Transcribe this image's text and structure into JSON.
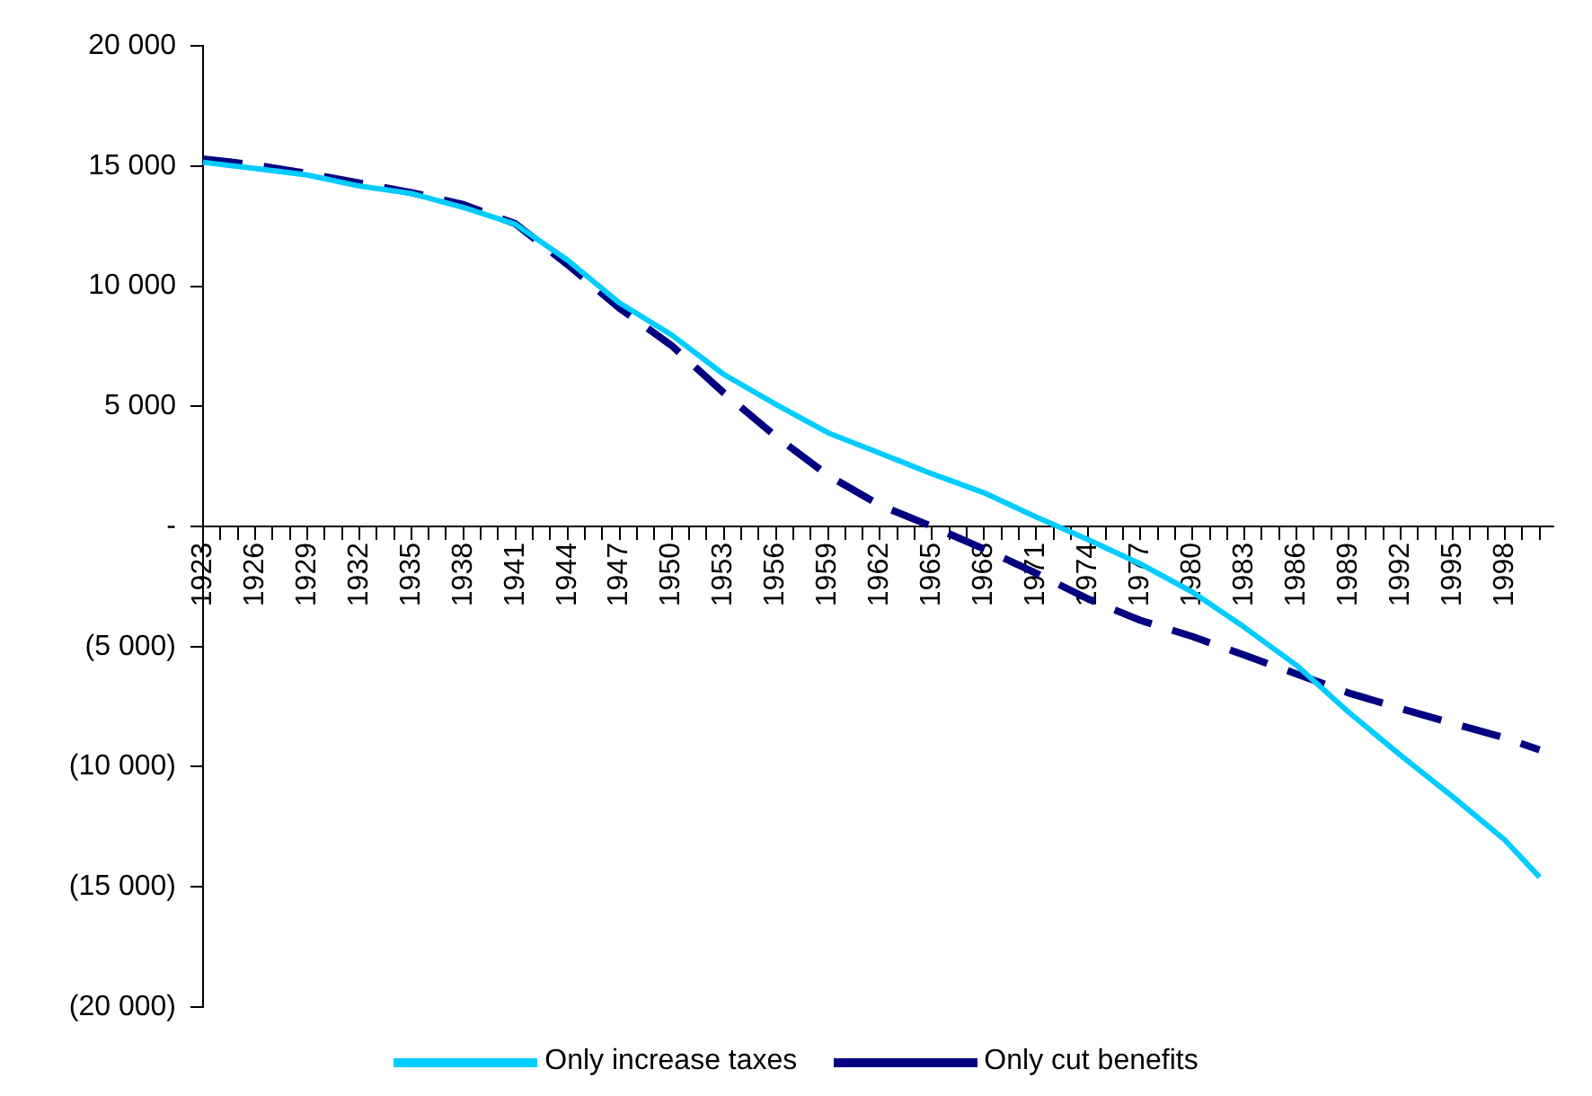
{
  "chart_data": {
    "type": "line",
    "x": [
      1923,
      1926,
      1929,
      1932,
      1935,
      1938,
      1941,
      1944,
      1947,
      1950,
      1953,
      1956,
      1959,
      1962,
      1965,
      1968,
      1971,
      1974,
      1977,
      1980,
      1983,
      1986,
      1989,
      1992,
      1995,
      1998,
      2000
    ],
    "series": [
      {
        "name": "Only increase taxes",
        "color": "#00ccff",
        "line_style": "solid",
        "values": [
          15160,
          14900,
          14630,
          14170,
          13860,
          13280,
          12580,
          11090,
          9300,
          7970,
          6330,
          5080,
          3900,
          3050,
          2190,
          1400,
          390,
          -550,
          -1560,
          -2730,
          -4200,
          -5780,
          -7730,
          -9530,
          -11250,
          -13050,
          -14600
        ]
      },
      {
        "name": "Only cut benefits",
        "color": "#000080",
        "line_style": "dashed",
        "values": [
          15300,
          15050,
          14700,
          14300,
          13900,
          13400,
          12600,
          10900,
          9080,
          7530,
          5560,
          3750,
          2130,
          880,
          0,
          -940,
          -1950,
          -3020,
          -3910,
          -4580,
          -5360,
          -6140,
          -6930,
          -7580,
          -8200,
          -8800,
          -9300
        ]
      }
    ],
    "xlim": [
      1923,
      2000.8
    ],
    "xticks": [
      1923,
      {
        "value": 1924,
        "label": null
      },
      {
        "value": 1925,
        "label": null
      },
      1926,
      {
        "value": 1927,
        "label": null
      },
      {
        "value": 1928,
        "label": null
      },
      1929,
      {
        "value": 1930,
        "label": null
      },
      {
        "value": 1931,
        "label": null
      },
      1932,
      {
        "value": 1933,
        "label": null
      },
      {
        "value": 1934,
        "label": null
      },
      1935,
      {
        "value": 1936,
        "label": null
      },
      {
        "value": 1937,
        "label": null
      },
      1938,
      {
        "value": 1939,
        "label": null
      },
      {
        "value": 1940,
        "label": null
      },
      1941,
      {
        "value": 1942,
        "label": null
      },
      {
        "value": 1943,
        "label": null
      },
      1944,
      {
        "value": 1945,
        "label": null
      },
      {
        "value": 1946,
        "label": null
      },
      1947,
      {
        "value": 1948,
        "label": null
      },
      {
        "value": 1949,
        "label": null
      },
      1950,
      {
        "value": 1951,
        "label": null
      },
      {
        "value": 1952,
        "label": null
      },
      1953,
      {
        "value": 1954,
        "label": null
      },
      {
        "value": 1955,
        "label": null
      },
      1956,
      {
        "value": 1957,
        "label": null
      },
      {
        "value": 1958,
        "label": null
      },
      1959,
      {
        "value": 1960,
        "label": null
      },
      {
        "value": 1961,
        "label": null
      },
      1962,
      {
        "value": 1963,
        "label": null
      },
      {
        "value": 1964,
        "label": null
      },
      1965,
      {
        "value": 1966,
        "label": null
      },
      {
        "value": 1967,
        "label": null
      },
      1968,
      {
        "value": 1969,
        "label": null
      },
      {
        "value": 1970,
        "label": null
      },
      1971,
      {
        "value": 1972,
        "label": null
      },
      {
        "value": 1973,
        "label": null
      },
      1974,
      {
        "value": 1975,
        "label": null
      },
      {
        "value": 1976,
        "label": null
      },
      1977,
      {
        "value": 1978,
        "label": null
      },
      {
        "value": 1979,
        "label": null
      },
      1980,
      {
        "value": 1981,
        "label": null
      },
      {
        "value": 1982,
        "label": null
      },
      1983,
      {
        "value": 1984,
        "label": null
      },
      {
        "value": 1985,
        "label": null
      },
      1986,
      {
        "value": 1987,
        "label": null
      },
      {
        "value": 1988,
        "label": null
      },
      1989,
      {
        "value": 1990,
        "label": null
      },
      {
        "value": 1991,
        "label": null
      },
      1992,
      {
        "value": 1993,
        "label": null
      },
      {
        "value": 1994,
        "label": null
      },
      1995,
      {
        "value": 1996,
        "label": null
      },
      {
        "value": 1997,
        "label": null
      },
      1998,
      {
        "value": 1999,
        "label": null
      },
      {
        "value": 2000,
        "label": null
      }
    ],
    "ylim": [
      -20000,
      20000
    ],
    "yticks": [
      {
        "value": -20000,
        "label": "(20 000)"
      },
      {
        "value": -15000,
        "label": "(15 000)"
      },
      {
        "value": -10000,
        "label": "(10 000)"
      },
      {
        "value": -5000,
        "label": "(5 000)"
      },
      {
        "value": 0,
        "label": "-"
      },
      {
        "value": 5000,
        "label": "5 000"
      },
      {
        "value": 10000,
        "label": "10 000"
      },
      {
        "value": 15000,
        "label": "15 000"
      },
      {
        "value": 20000,
        "label": "20 000"
      }
    ],
    "grid": false,
    "legend": "bottom",
    "marker": "none"
  }
}
